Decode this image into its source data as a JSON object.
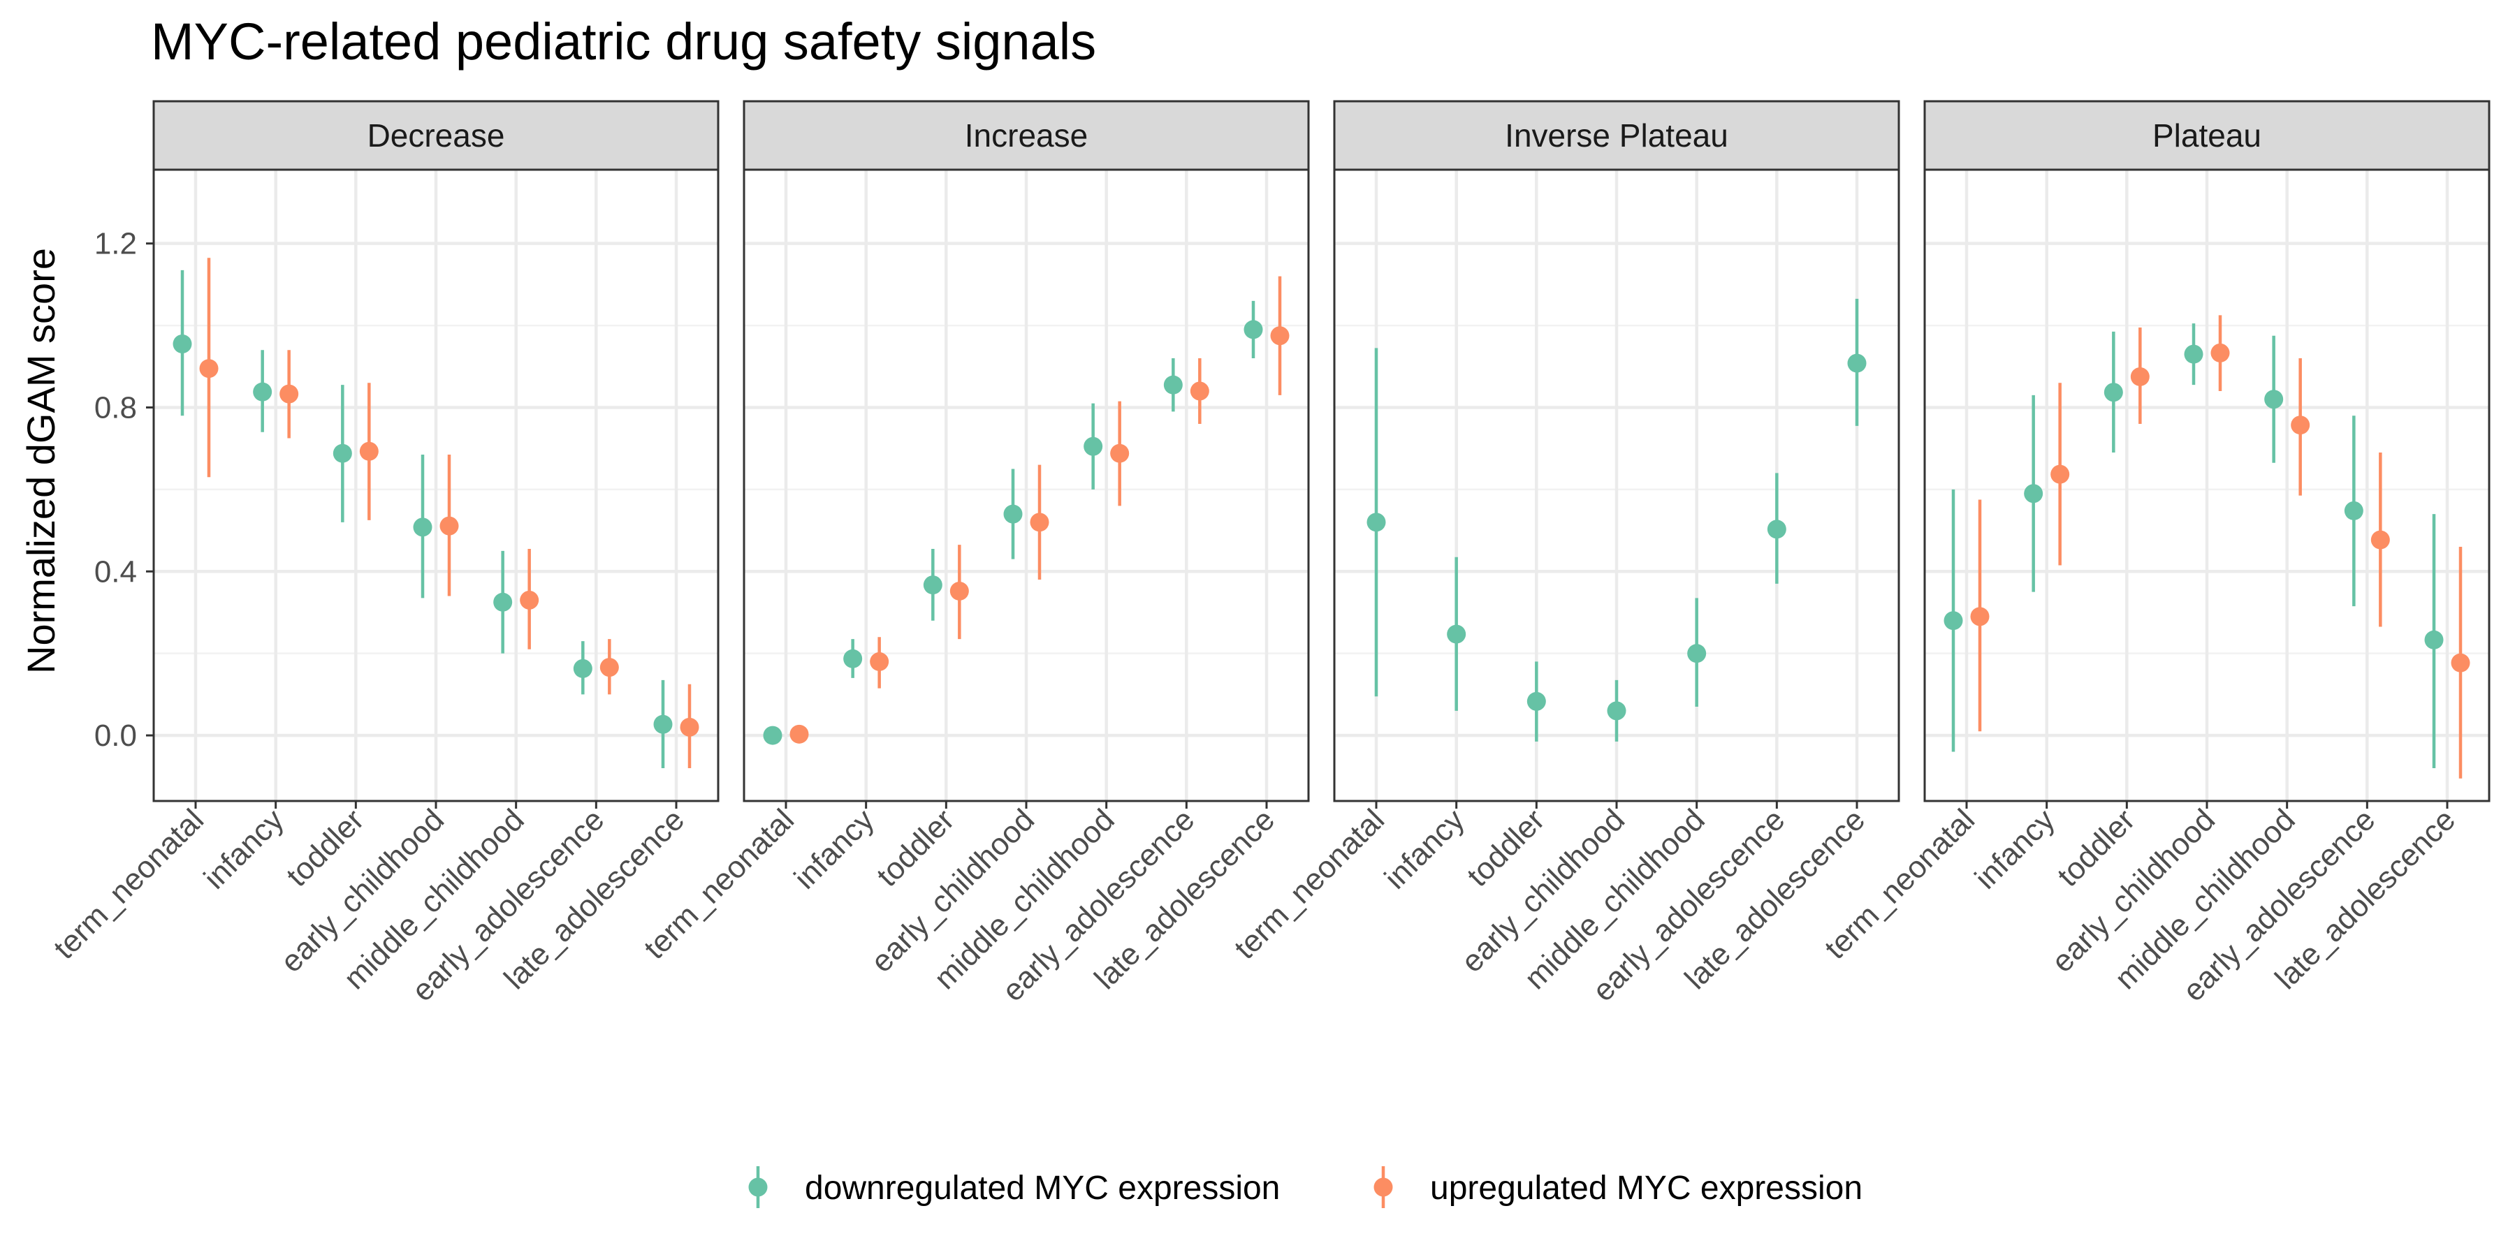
{
  "chart_data": {
    "type": "scatter",
    "title": "MYC-related pediatric drug safety signals",
    "ylabel": "Normalized dGAM score",
    "xlabel": "",
    "ylim": [
      -0.16,
      1.38
    ],
    "yticks": [
      "0.0",
      "0.4",
      "0.8",
      "1.2"
    ],
    "ytick_values": [
      0.0,
      0.4,
      0.8,
      1.2
    ],
    "categories": [
      "term_neonatal",
      "infancy",
      "toddler",
      "early_childhood",
      "middle_childhood",
      "early_adolescence",
      "late_adolescence"
    ],
    "grid": true,
    "legend_position": "bottom",
    "series": [
      {
        "name": "downregulated MYC expression",
        "color": "#66c2a5"
      },
      {
        "name": "upregulated MYC expression",
        "color": "#fc8d62"
      }
    ],
    "facets": [
      {
        "label": "Decrease",
        "series": [
          {
            "name": "downregulated MYC expression",
            "values": [
              0.955,
              0.838,
              0.688,
              0.508,
              0.325,
              0.163,
              0.027
            ],
            "lower": [
              0.78,
              0.74,
              0.52,
              0.335,
              0.2,
              0.1,
              -0.08
            ],
            "upper": [
              1.135,
              0.94,
              0.855,
              0.685,
              0.45,
              0.23,
              0.135
            ]
          },
          {
            "name": "upregulated MYC expression",
            "values": [
              0.895,
              0.833,
              0.693,
              0.511,
              0.33,
              0.166,
              0.02
            ],
            "lower": [
              0.63,
              0.725,
              0.525,
              0.34,
              0.21,
              0.1,
              -0.08
            ],
            "upper": [
              1.165,
              0.94,
              0.86,
              0.685,
              0.455,
              0.235,
              0.125
            ]
          }
        ]
      },
      {
        "label": "Increase",
        "series": [
          {
            "name": "downregulated MYC expression",
            "values": [
              0.0,
              0.187,
              0.367,
              0.54,
              0.705,
              0.855,
              0.99
            ],
            "lower": [
              -0.01,
              0.14,
              0.28,
              0.43,
              0.6,
              0.79,
              0.92
            ],
            "upper": [
              0.01,
              0.235,
              0.455,
              0.65,
              0.81,
              0.92,
              1.06
            ]
          },
          {
            "name": "upregulated MYC expression",
            "values": [
              0.003,
              0.18,
              0.352,
              0.52,
              0.688,
              0.84,
              0.975
            ],
            "lower": [
              -0.005,
              0.115,
              0.235,
              0.38,
              0.56,
              0.76,
              0.83
            ],
            "upper": [
              0.012,
              0.24,
              0.465,
              0.66,
              0.815,
              0.92,
              1.12
            ]
          }
        ]
      },
      {
        "label": "Inverse Plateau",
        "series": [
          {
            "name": "downregulated MYC expression",
            "values": [
              0.52,
              0.247,
              0.083,
              0.06,
              0.2,
              0.503,
              0.908
            ],
            "lower": [
              0.095,
              0.06,
              -0.015,
              -0.015,
              0.07,
              0.37,
              0.755
            ],
            "upper": [
              0.945,
              0.435,
              0.18,
              0.135,
              0.335,
              0.64,
              1.065
            ]
          }
        ]
      },
      {
        "label": "Plateau",
        "series": [
          {
            "name": "downregulated MYC expression",
            "values": [
              0.28,
              0.59,
              0.837,
              0.93,
              0.82,
              0.548,
              0.233
            ],
            "lower": [
              -0.04,
              0.35,
              0.69,
              0.855,
              0.665,
              0.315,
              -0.08
            ],
            "upper": [
              0.6,
              0.83,
              0.985,
              1.005,
              0.975,
              0.78,
              0.54
            ]
          },
          {
            "name": "upregulated MYC expression",
            "values": [
              0.29,
              0.637,
              0.875,
              0.933,
              0.757,
              0.477,
              0.177
            ],
            "lower": [
              0.01,
              0.415,
              0.76,
              0.84,
              0.585,
              0.265,
              -0.105
            ],
            "upper": [
              0.575,
              0.86,
              0.995,
              1.025,
              0.92,
              0.69,
              0.46
            ]
          }
        ]
      }
    ]
  }
}
